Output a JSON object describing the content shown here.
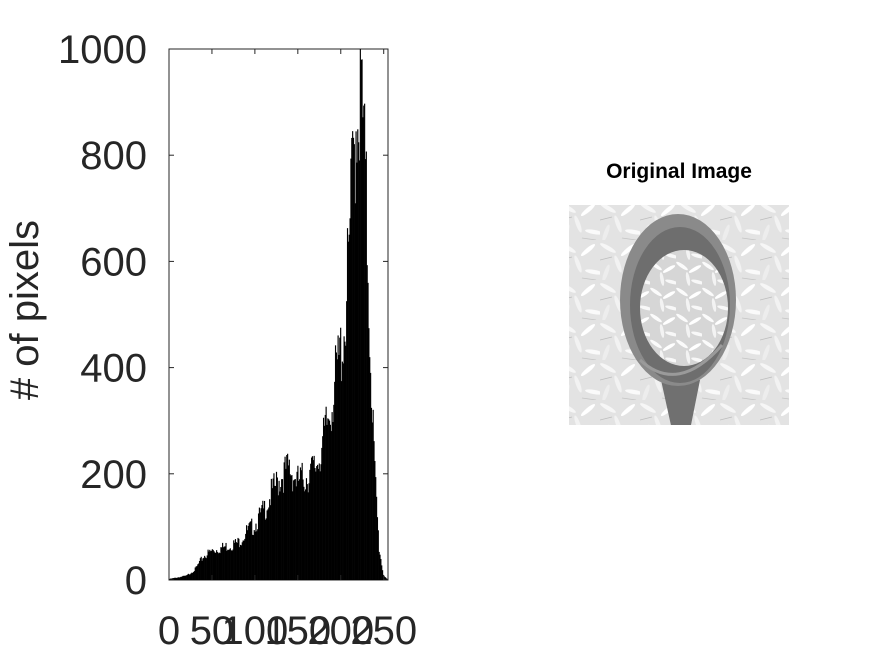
{
  "chart_data": [
    {
      "type": "bar",
      "title": "",
      "xlabel": "",
      "ylabel": "# of pixels",
      "xlim": [
        0,
        255
      ],
      "ylim": [
        0,
        1000
      ],
      "xticks": [
        "0",
        "50",
        "100",
        "150",
        "200",
        "250"
      ],
      "yticks": [
        "0",
        "200",
        "400",
        "600",
        "800",
        "1000"
      ],
      "grid": false,
      "bar_color": "#000000",
      "series": [
        {
          "x": [
            0,
            10,
            20,
            30,
            40,
            50,
            60,
            70,
            80,
            90,
            100,
            110,
            120,
            130,
            140,
            150,
            160,
            170,
            180,
            190,
            200,
            205,
            210,
            215,
            220,
            225,
            230,
            235,
            240,
            245,
            250,
            255
          ],
          "values": [
            2,
            5,
            8,
            20,
            45,
            55,
            60,
            65,
            70,
            90,
            105,
            130,
            165,
            195,
            210,
            185,
            195,
            210,
            260,
            340,
            430,
            480,
            620,
            800,
            910,
            900,
            700,
            420,
            200,
            60,
            10,
            0
          ]
        }
      ]
    },
    {
      "type": "image",
      "title": "Original Image",
      "description_icon": "grayscale-rice-spoon-photo"
    }
  ]
}
